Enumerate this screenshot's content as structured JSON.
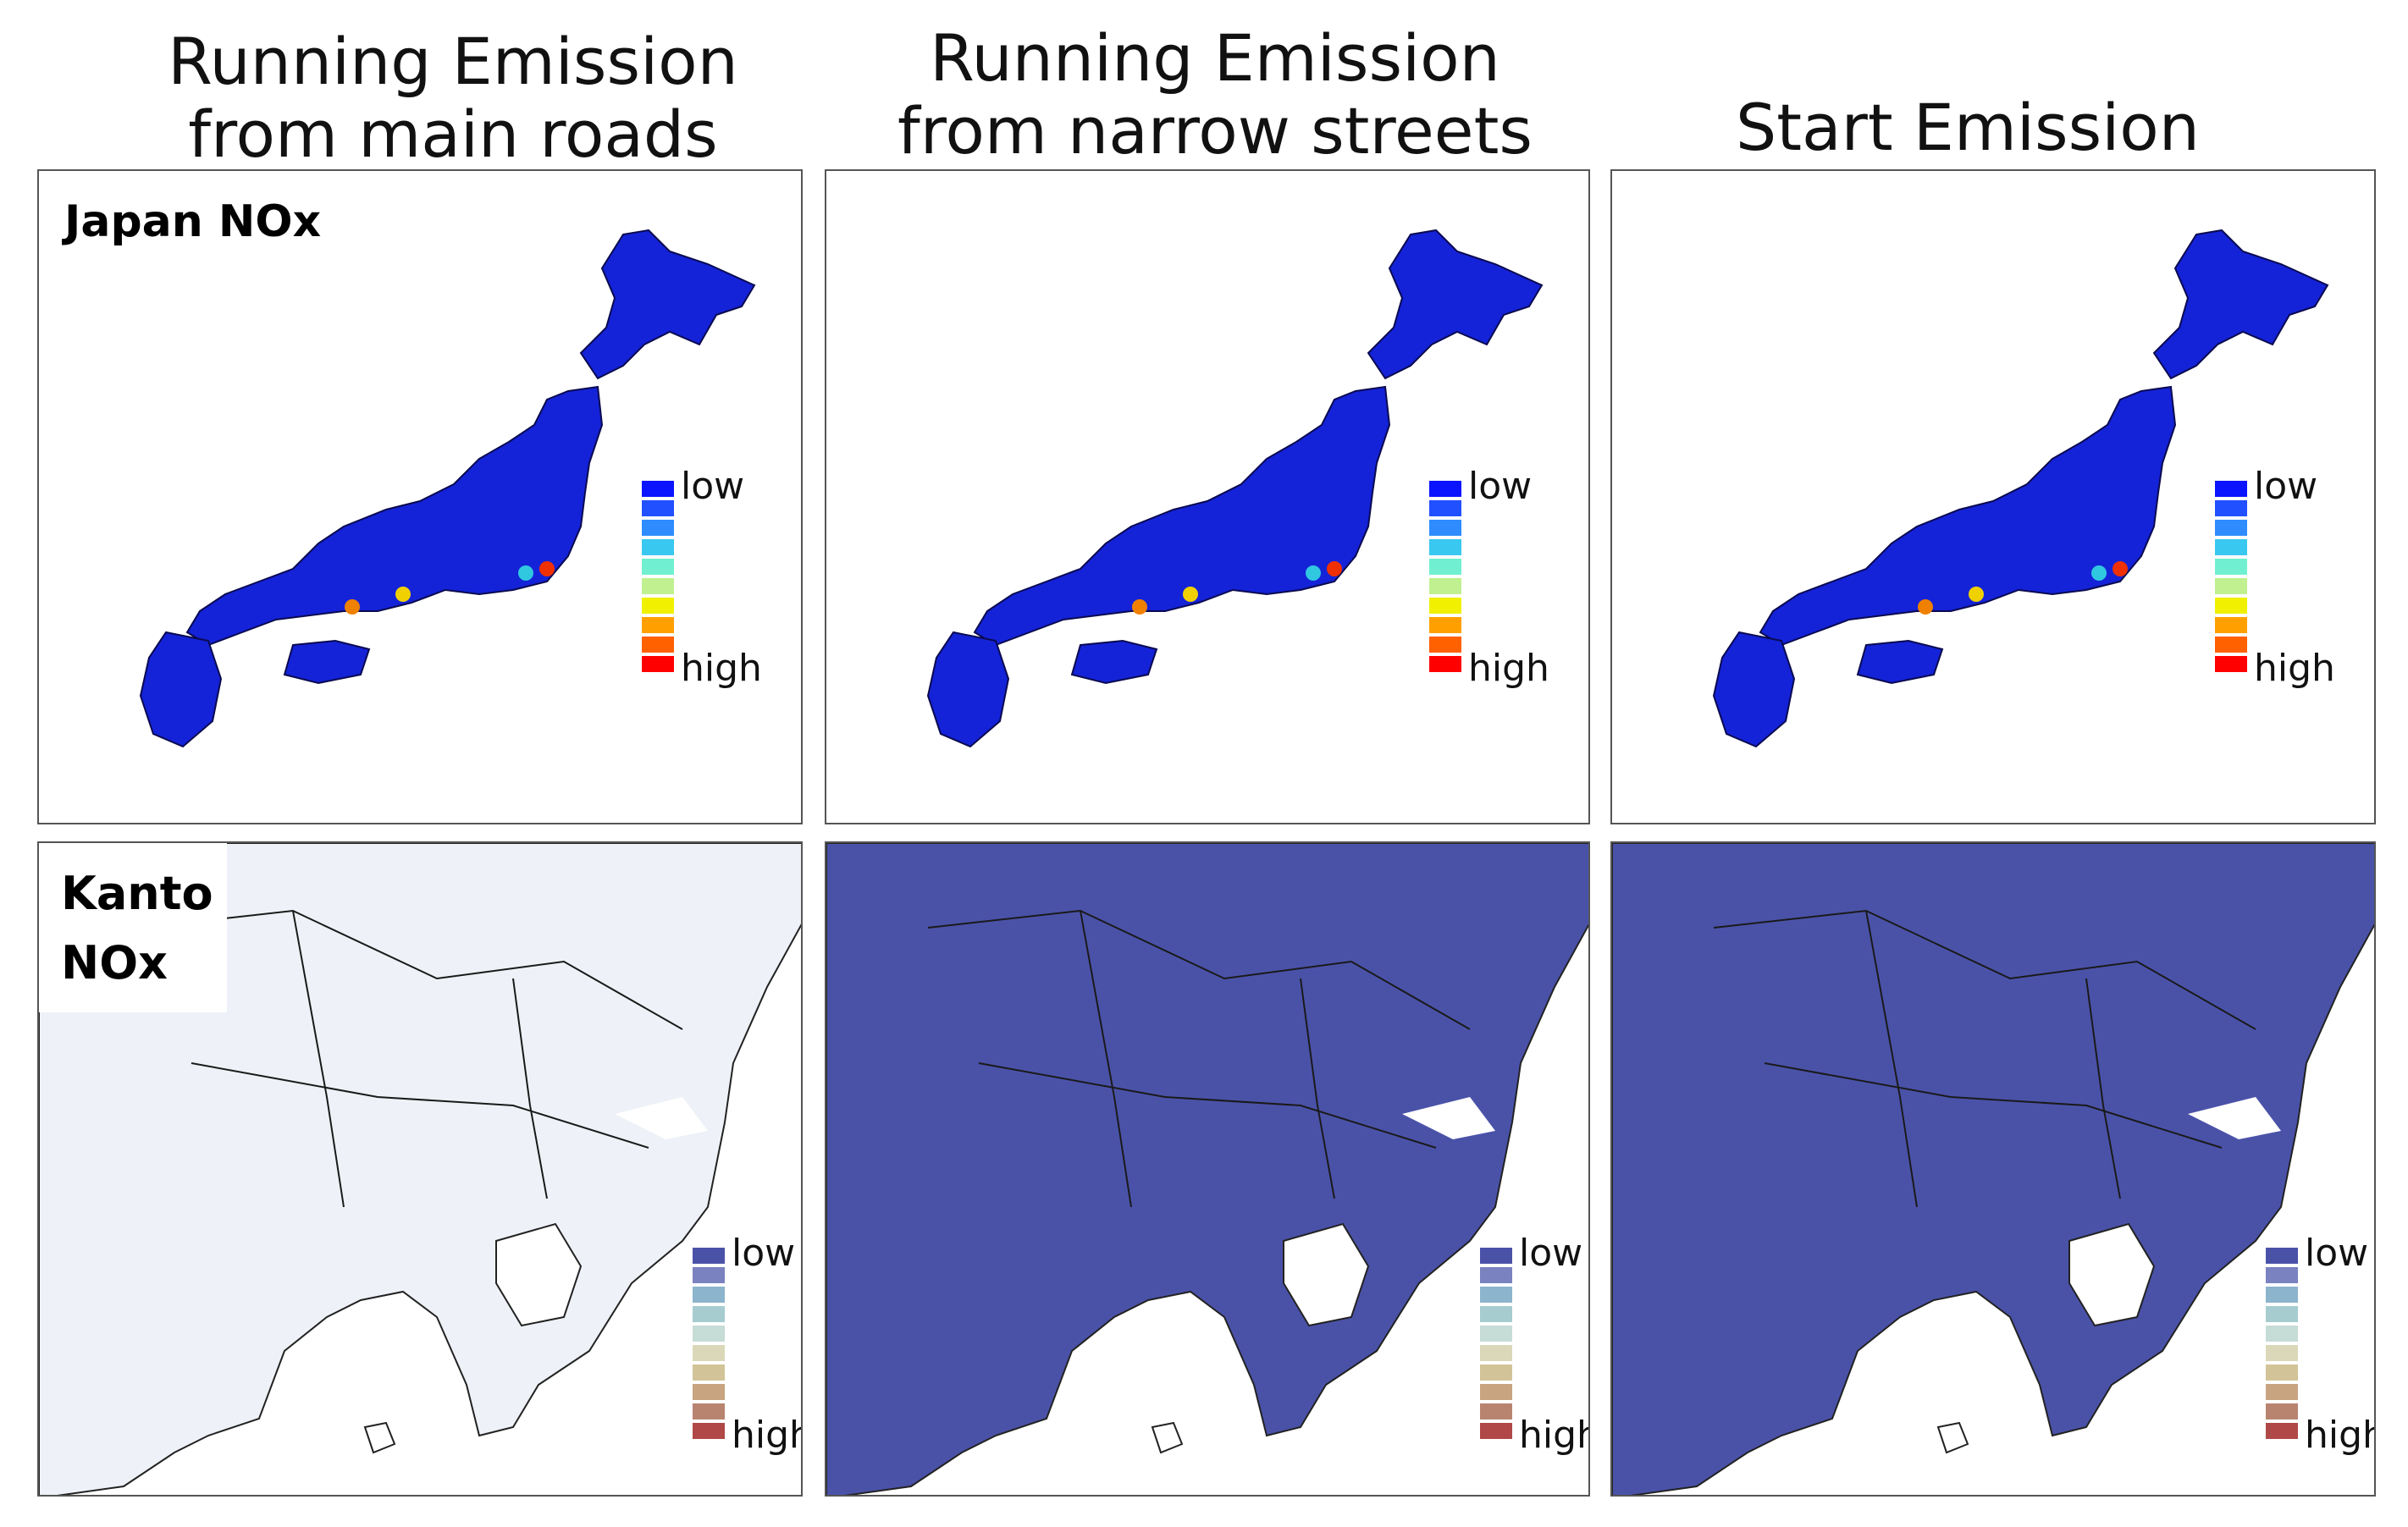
{
  "titles": [
    "Running Emission\nfrom main roads",
    "Running Emission\nfrom narrow streets",
    "Start Emission"
  ],
  "panel_labels": {
    "japan": "Japan  NOx",
    "kanto_line1": "Kanto",
    "kanto_line2": "NOx"
  },
  "legend": {
    "low": "low",
    "high": "high"
  },
  "japan_scale": [
    "#0a14ff",
    "#2050ff",
    "#2e8cff",
    "#38c8f0",
    "#70f0d0",
    "#c0f090",
    "#f0f000",
    "#ffa000",
    "#ff6000",
    "#ff0000"
  ],
  "kanto_scale": [
    "#4a52a8",
    "#7a82c0",
    "#8cb4cc",
    "#a6ccd0",
    "#c6dcd6",
    "#dad8b8",
    "#d2c498",
    "#c8a480",
    "#b88470",
    "#b04848"
  ]
}
